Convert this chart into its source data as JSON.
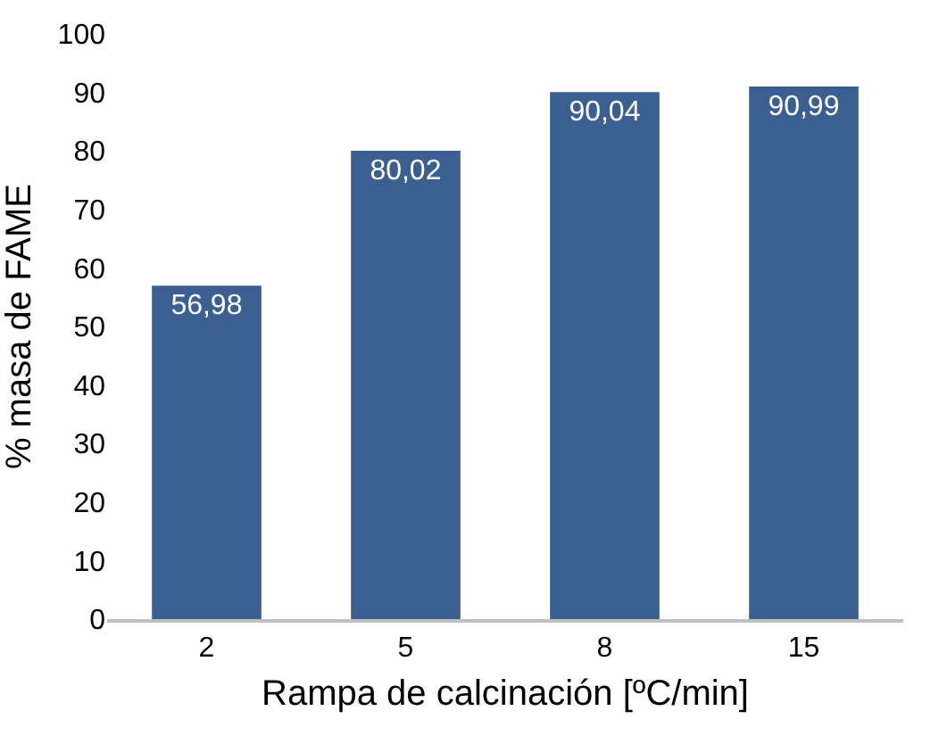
{
  "chart_data": {
    "type": "bar",
    "xlabel": "Rampa de calcinación [ºC/min]",
    "ylabel": "% masa de FAME",
    "categories": [
      "2",
      "5",
      "8",
      "15"
    ],
    "values": [
      56.98,
      80.02,
      90.04,
      90.99
    ],
    "value_labels": [
      "56,98",
      "80,02",
      "90,04",
      "90,99"
    ],
    "color": "#3b5f91",
    "ylim": [
      0,
      100
    ],
    "yticks": [
      0,
      10,
      20,
      30,
      40,
      50,
      60,
      70,
      80,
      90,
      100
    ]
  }
}
